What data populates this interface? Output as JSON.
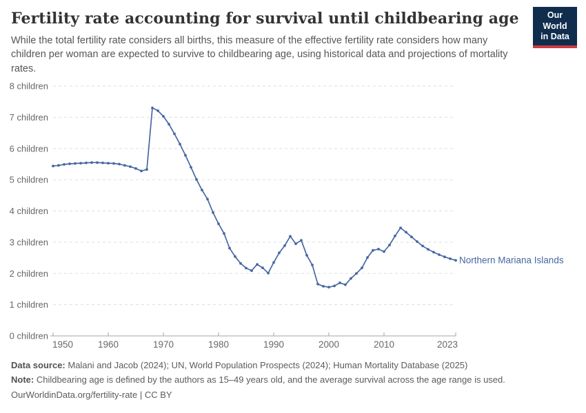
{
  "header": {
    "title": "Fertility rate accounting for survival until childbearing age",
    "subtitle": "While the total fertility rate considers all births, this measure of the effective fertility rate considers how many children per woman are expected to survive to childbearing age, using historical data and projections of mortality rates.",
    "logo": {
      "line1": "Our World",
      "line2": "in Data",
      "bg_color": "#102d4e",
      "accent_color": "#cf3a3e"
    }
  },
  "chart_data": {
    "type": "line",
    "title": "Fertility rate accounting for survival until childbearing age",
    "xlabel": "",
    "ylabel": "",
    "xlim": [
      1950,
      2023
    ],
    "ylim": [
      0,
      8
    ],
    "grid": "horizontal-dashed",
    "x_ticks": [
      1950,
      1960,
      1970,
      1980,
      1990,
      2000,
      2010,
      2023
    ],
    "y_ticks": [
      0,
      1,
      2,
      3,
      4,
      5,
      6,
      7,
      8
    ],
    "y_tick_suffix": " children",
    "line_color": "#4767a4",
    "axis_color": "#a3a3a3",
    "grid_color": "#dddddd",
    "tick_label_color": "#676767",
    "end_label": "Northern Mariana Islands",
    "series": [
      {
        "name": "Northern Mariana Islands",
        "years": [
          1950,
          1951,
          1952,
          1953,
          1954,
          1955,
          1956,
          1957,
          1958,
          1959,
          1960,
          1961,
          1962,
          1963,
          1964,
          1965,
          1966,
          1967,
          1968,
          1969,
          1970,
          1971,
          1972,
          1973,
          1974,
          1975,
          1976,
          1977,
          1978,
          1979,
          1980,
          1981,
          1982,
          1983,
          1984,
          1985,
          1986,
          1987,
          1988,
          1989,
          1990,
          1991,
          1992,
          1993,
          1994,
          1995,
          1996,
          1997,
          1998,
          1999,
          2000,
          2001,
          2002,
          2003,
          2004,
          2005,
          2006,
          2007,
          2008,
          2009,
          2010,
          2011,
          2012,
          2013,
          2014,
          2015,
          2016,
          2017,
          2018,
          2019,
          2020,
          2021,
          2022,
          2023
        ],
        "values": [
          5.44,
          5.46,
          5.49,
          5.51,
          5.52,
          5.53,
          5.54,
          5.55,
          5.55,
          5.54,
          5.53,
          5.52,
          5.5,
          5.46,
          5.42,
          5.36,
          5.28,
          5.33,
          7.3,
          7.21,
          7.03,
          6.78,
          6.47,
          6.14,
          5.78,
          5.4,
          5.01,
          4.67,
          4.38,
          3.95,
          3.59,
          3.28,
          2.81,
          2.54,
          2.32,
          2.17,
          2.09,
          2.29,
          2.18,
          2.01,
          2.35,
          2.66,
          2.89,
          3.19,
          2.95,
          3.06,
          2.58,
          2.27,
          1.66,
          1.59,
          1.56,
          1.6,
          1.7,
          1.64,
          1.84,
          2.0,
          2.18,
          2.51,
          2.74,
          2.78,
          2.7,
          2.91,
          3.2,
          3.46,
          3.32,
          3.17,
          3.02,
          2.88,
          2.77,
          2.68,
          2.6,
          2.53,
          2.47,
          2.42
        ]
      }
    ]
  },
  "footer": {
    "datasource_label": "Data source:",
    "datasource_text": " Malani and Jacob (2024); UN, World Population Prospects (2024); Human Mortality Database (2025)",
    "note_label": "Note:",
    "note_text": " Childbearing age is defined by the authors as 15–49 years old, and the average survival across the age range is used.",
    "license_text": "OurWorldinData.org/fertility-rate | CC BY"
  }
}
